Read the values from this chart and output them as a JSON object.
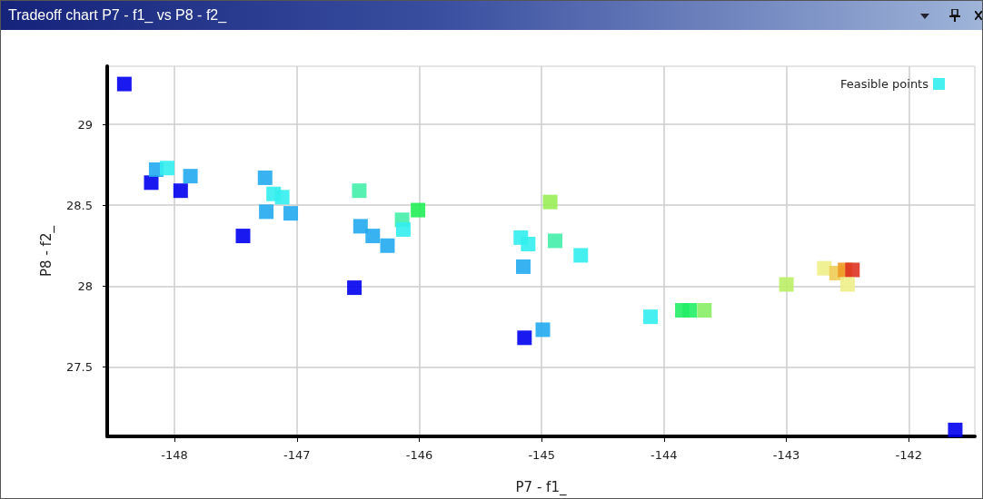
{
  "chart_data": {
    "type": "scatter",
    "title": "Tradeoff chart P7 - f1_ vs P8 - f2_",
    "xlabel": "P7 - f1_",
    "ylabel": "P8 - f2_",
    "xlim": [
      -148.55,
      -141.46
    ],
    "xticks": [
      -148,
      -147,
      -146,
      -145,
      -144,
      -143,
      -142
    ],
    "ylim": [
      27.07,
      29.36
    ],
    "yticks": [
      27.5,
      28,
      28.5,
      29
    ],
    "grid": true,
    "legend": "top right",
    "marker": "square",
    "series": [
      {
        "name": "Feasible points",
        "color": "#33eeee",
        "x": [
          -148.41,
          -148.19,
          -148.15,
          -148.06,
          -147.95,
          -147.87,
          -147.44,
          -147.26,
          -147.25,
          -147.19,
          -147.12,
          -147.05,
          -146.53,
          -146.49,
          -146.48,
          -146.38,
          -146.26,
          -146.14,
          -146.13,
          -146.01,
          -145.17,
          -145.11,
          -145.15,
          -144.93,
          -144.89,
          -144.68,
          -145.14,
          -144.99,
          -144.11,
          -143.85,
          -143.79,
          -143.67,
          -143.0,
          -142.69,
          -142.59,
          -142.52,
          -142.46,
          -142.5,
          -141.62
        ],
        "values": [
          29.25,
          28.64,
          28.72,
          28.73,
          28.59,
          28.68,
          28.31,
          28.67,
          28.46,
          28.57,
          28.55,
          28.45,
          27.99,
          28.59,
          28.37,
          28.31,
          28.25,
          28.41,
          28.35,
          28.47,
          28.3,
          28.26,
          28.12,
          28.52,
          28.28,
          28.19,
          27.68,
          27.73,
          27.81,
          27.85,
          27.85,
          27.85,
          28.01,
          28.11,
          28.08,
          28.1,
          28.1,
          28.01,
          27.11
        ],
        "colors": [
          "#0000ee",
          "#0000ee",
          "#22aaee",
          "#33eeee",
          "#0000ee",
          "#22aaee",
          "#0000ee",
          "#22aaee",
          "#22aaee",
          "#33eeee",
          "#33eeee",
          "#22aaee",
          "#0000ee",
          "#44eeaa",
          "#22aaee",
          "#22aaee",
          "#22aaee",
          "#44eeaa",
          "#33eeee",
          "#22ee55",
          "#33eeee",
          "#33eeee",
          "#22aaee",
          "#99ee55",
          "#44eeaa",
          "#33eeee",
          "#0000ee",
          "#22aaee",
          "#33eeee",
          "#22ee66",
          "#22ee66",
          "#88ee66",
          "#bbee66",
          "#eeee88",
          "#eecc55",
          "#ee9922",
          "#dd3322",
          "#eeee88",
          "#0000ee"
        ]
      }
    ]
  }
}
